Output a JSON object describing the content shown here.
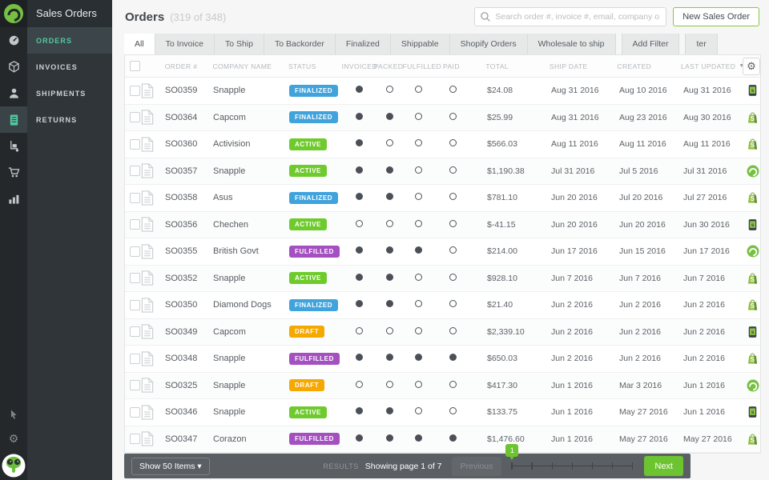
{
  "app": {
    "title": "Sales Orders"
  },
  "sidebar": {
    "rail_icons": [
      "stitch-logo",
      "dashboard",
      "products",
      "contacts",
      "sales-orders",
      "purchase-orders",
      "cart",
      "reports",
      "cursor",
      "settings",
      "mascot-avatar"
    ],
    "menu": [
      "ORDERS",
      "INVOICES",
      "SHIPMENTS",
      "RETURNS"
    ],
    "active": "ORDERS"
  },
  "header": {
    "title": "Orders",
    "count": "(319 of 348)",
    "search_placeholder": "Search order #, invoice #, email, company or referen...",
    "new_button": "New Sales Order"
  },
  "tabs": {
    "items": [
      "All",
      "To Invoice",
      "To Ship",
      "To Backorder",
      "Finalized",
      "Shippable",
      "Shopify Orders",
      "Wholesale to ship",
      "Add Filter",
      "ter"
    ],
    "active": "All"
  },
  "table": {
    "columns": [
      "ORDER #",
      "COMPANY NAME",
      "STATUS",
      "INVOICED",
      "PACKED",
      "FULFILLED",
      "PAID",
      "TOTAL",
      "SHIP DATE",
      "CREATED",
      "LAST UPDATED"
    ],
    "rows": [
      {
        "order": "SO0359",
        "company": "Snapple",
        "status": "FINALIZED",
        "invoiced": true,
        "packed": false,
        "fulfilled": false,
        "paid": false,
        "total": "$24.08",
        "ship": "Aug 31 2016",
        "created": "Aug 10 2016",
        "updated": "Aug 31 2016",
        "channel": "mobile"
      },
      {
        "order": "SO0364",
        "company": "Capcom",
        "status": "FINALIZED",
        "invoiced": true,
        "packed": true,
        "fulfilled": false,
        "paid": false,
        "total": "$25.99",
        "ship": "Aug 31 2016",
        "created": "Aug 23 2016",
        "updated": "Aug 30 2016",
        "channel": "shopify"
      },
      {
        "order": "SO0360",
        "company": "Activision",
        "status": "ACTIVE",
        "invoiced": true,
        "packed": false,
        "fulfilled": false,
        "paid": false,
        "total": "$566.03",
        "ship": "Aug 11 2016",
        "created": "Aug 11 2016",
        "updated": "Aug 11 2016",
        "channel": "shopify"
      },
      {
        "order": "SO0357",
        "company": "Snapple",
        "status": "ACTIVE",
        "invoiced": true,
        "packed": true,
        "fulfilled": false,
        "paid": false,
        "total": "$1,190.38",
        "ship": "Jul 31 2016",
        "created": "Jul 5 2016",
        "updated": "Jul 31 2016",
        "channel": "stitch"
      },
      {
        "order": "SO0358",
        "company": "Asus",
        "status": "FINALIZED",
        "invoiced": true,
        "packed": true,
        "fulfilled": false,
        "paid": false,
        "total": "$781.10",
        "ship": "Jun 20 2016",
        "created": "Jul 20 2016",
        "updated": "Jul 27 2016",
        "channel": "shopify"
      },
      {
        "order": "SO0356",
        "company": "Chechen",
        "status": "ACTIVE",
        "invoiced": false,
        "packed": false,
        "fulfilled": false,
        "paid": false,
        "total": "$-41.15",
        "ship": "Jun 20 2016",
        "created": "Jun 20 2016",
        "updated": "Jun 30 2016",
        "channel": "mobile"
      },
      {
        "order": "SO0355",
        "company": "British Govt",
        "status": "FULFILLED",
        "invoiced": true,
        "packed": true,
        "fulfilled": true,
        "paid": false,
        "total": "$214.00",
        "ship": "Jun 17 2016",
        "created": "Jun 15 2016",
        "updated": "Jun 17 2016",
        "channel": "stitch"
      },
      {
        "order": "SO0352",
        "company": "Snapple",
        "status": "ACTIVE",
        "invoiced": true,
        "packed": true,
        "fulfilled": false,
        "paid": false,
        "total": "$928.10",
        "ship": "Jun 7 2016",
        "created": "Jun 7 2016",
        "updated": "Jun 7 2016",
        "channel": "shopify"
      },
      {
        "order": "SO0350",
        "company": "Diamond Dogs",
        "status": "FINALIZED",
        "invoiced": true,
        "packed": true,
        "fulfilled": false,
        "paid": false,
        "total": "$21.40",
        "ship": "Jun 2 2016",
        "created": "Jun 2 2016",
        "updated": "Jun 2 2016",
        "channel": "shopify"
      },
      {
        "order": "SO0349",
        "company": "Capcom",
        "status": "DRAFT",
        "invoiced": false,
        "packed": false,
        "fulfilled": false,
        "paid": false,
        "total": "$2,339.10",
        "ship": "Jun 2 2016",
        "created": "Jun 2 2016",
        "updated": "Jun 2 2016",
        "channel": "mobile"
      },
      {
        "order": "SO0348",
        "company": "Snapple",
        "status": "FULFILLED",
        "invoiced": true,
        "packed": true,
        "fulfilled": true,
        "paid": true,
        "total": "$650.03",
        "ship": "Jun 2 2016",
        "created": "Jun 2 2016",
        "updated": "Jun 2 2016",
        "channel": "shopify"
      },
      {
        "order": "SO0325",
        "company": "Snapple",
        "status": "DRAFT",
        "invoiced": false,
        "packed": false,
        "fulfilled": false,
        "paid": false,
        "total": "$417.30",
        "ship": "Jun 1 2016",
        "created": "Mar 3 2016",
        "updated": "Jun 1 2016",
        "channel": "stitch"
      },
      {
        "order": "SO0346",
        "company": "Snapple",
        "status": "ACTIVE",
        "invoiced": true,
        "packed": true,
        "fulfilled": false,
        "paid": false,
        "total": "$133.75",
        "ship": "Jun 1 2016",
        "created": "May 27 2016",
        "updated": "Jun 1 2016",
        "channel": "mobile"
      },
      {
        "order": "SO0347",
        "company": "Corazon",
        "status": "FULFILLED",
        "invoiced": true,
        "packed": true,
        "fulfilled": true,
        "paid": true,
        "total": "$1,476.60",
        "ship": "Jun 1 2016",
        "created": "May 27 2016",
        "updated": "May 27 2016",
        "channel": "shopify"
      }
    ]
  },
  "footer": {
    "show_items": "Show 50 Items",
    "results_label": "RESULTS",
    "showing": "Showing page 1 of 7",
    "previous": "Previous",
    "next": "Next",
    "current_page": "1",
    "total_pages": 7
  },
  "colors": {
    "accent_green": "#6cc430",
    "teal": "#54c8a0",
    "status": {
      "FINALIZED": "#41a3dc",
      "ACTIVE": "#6fcb2d",
      "FULFILLED": "#a550c0",
      "DRAFT": "#f5a800"
    }
  }
}
